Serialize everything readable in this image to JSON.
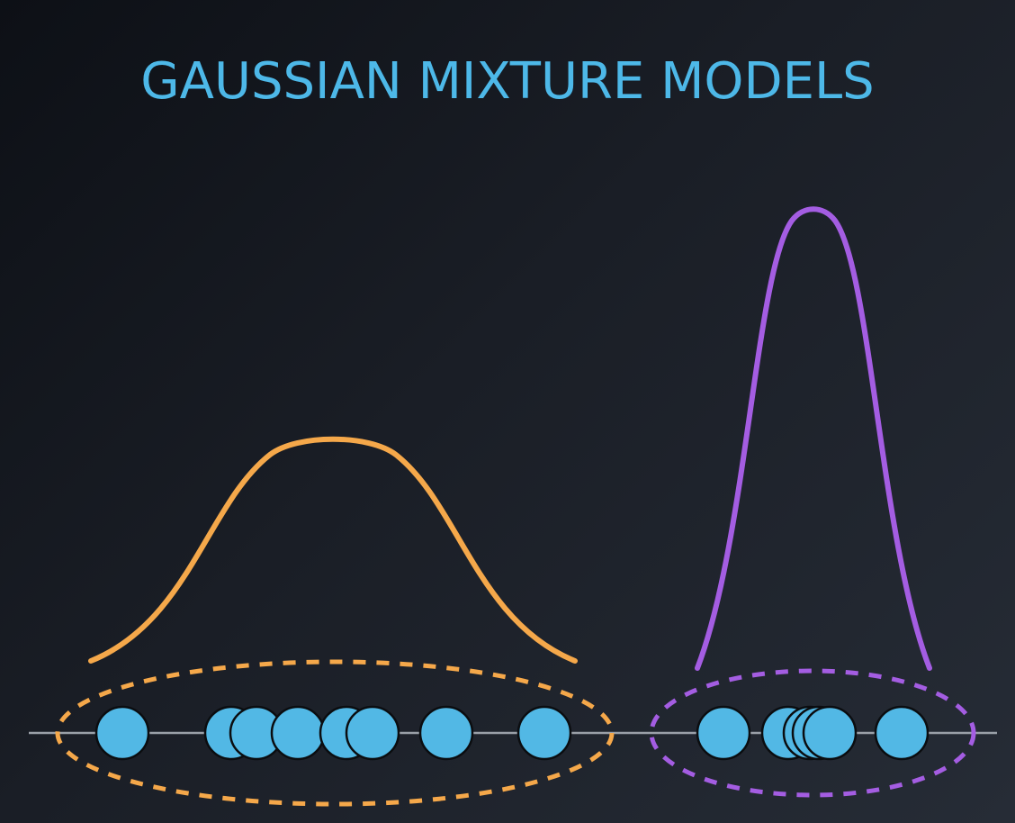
{
  "title": "GAUSSIAN MIXTURE MODELS",
  "colors": {
    "title": "#4db8e8",
    "cluster_1": "#f5a84a",
    "cluster_2": "#a45de2",
    "point_fill": "#52b8e5",
    "axis": "#9aa0a8"
  },
  "clusters": [
    {
      "id": "cluster-1",
      "color_key": "cluster_1",
      "shape": "wide-gaussian-curve",
      "point_count": 8
    },
    {
      "id": "cluster-2",
      "color_key": "cluster_2",
      "shape": "narrow-gaussian-curve",
      "point_count": 6
    }
  ]
}
